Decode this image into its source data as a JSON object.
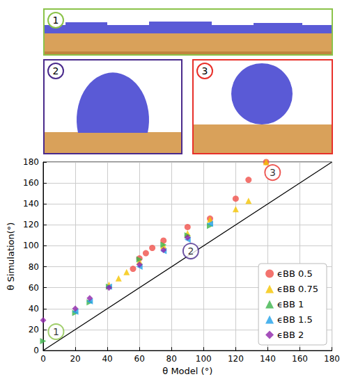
{
  "panels": [
    {
      "label": "1",
      "color": "#8bc34a"
    },
    {
      "label": "2",
      "color": "#4a2a8c"
    },
    {
      "label": "3",
      "color": "#e8302a"
    }
  ],
  "chart_data": {
    "type": "scatter",
    "x_label": "θ Model (°)",
    "y_label": "θ Simulation(°)",
    "xlim": [
      0,
      180
    ],
    "ylim": [
      0,
      180
    ],
    "xticks": [
      0,
      20,
      40,
      60,
      80,
      100,
      120,
      140,
      160,
      180
    ],
    "yticks": [
      0,
      20,
      40,
      60,
      80,
      100,
      120,
      140,
      160,
      180
    ],
    "grid": true,
    "legend": "lower right",
    "series": [
      {
        "name": "ϵBB 0.5",
        "color": "#f0504a",
        "marker": "circle",
        "x": [
          56,
          60,
          64,
          68,
          75,
          90,
          104,
          120,
          128,
          139
        ],
        "values": [
          78,
          88,
          93,
          98,
          105,
          118,
          126,
          145,
          163,
          180
        ]
      },
      {
        "name": "ϵBB 0.75",
        "color": "#f5c400",
        "marker": "triangle",
        "x": [
          41,
          47,
          52,
          60,
          75,
          90,
          104,
          120,
          128,
          139
        ],
        "values": [
          63,
          69,
          75,
          85,
          100,
          112,
          125,
          135,
          143,
          180
        ]
      },
      {
        "name": "ϵBB 1",
        "color": "#3cb44b",
        "marker": "triangle-right",
        "x": [
          0,
          20,
          29,
          41,
          60,
          75,
          90,
          104
        ],
        "values": [
          9,
          36,
          46,
          61,
          87,
          101,
          110,
          119
        ]
      },
      {
        "name": "ϵBB 1.5",
        "color": "#1fa0e8",
        "marker": "triangle-left",
        "x": [
          20,
          29,
          41,
          60,
          75,
          90,
          104
        ],
        "values": [
          37,
          47,
          61,
          80,
          95,
          106,
          121
        ]
      },
      {
        "name": "ϵBB 2",
        "color": "#8e24aa",
        "marker": "diamond",
        "x": [
          0,
          20,
          29,
          41,
          60,
          75,
          90
        ],
        "values": [
          29,
          40,
          50,
          60,
          82,
          96,
          108
        ]
      },
      {
        "type": "line",
        "color": "#000000",
        "line_style": "solid",
        "x": [
          0,
          180
        ],
        "values": [
          0,
          180
        ]
      }
    ],
    "annotations": [
      {
        "text": "1",
        "x": 8,
        "y": 18,
        "color": "#8bc34a"
      },
      {
        "text": "2",
        "x": 92,
        "y": 95,
        "color": "#4a2a8c"
      },
      {
        "text": "3",
        "x": 143,
        "y": 170,
        "color": "#e8302a"
      }
    ]
  }
}
